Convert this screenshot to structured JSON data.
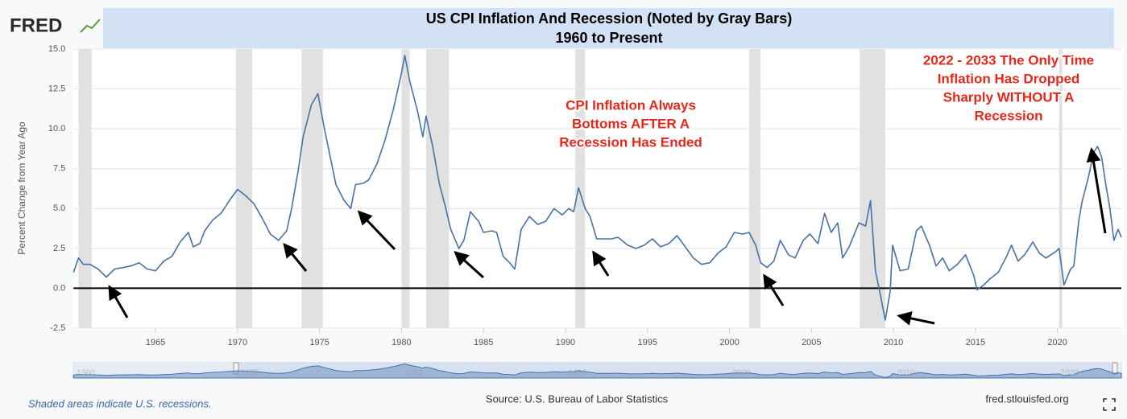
{
  "logo": "FRED",
  "chart_data": {
    "type": "line",
    "title": "US CPI Inflation And Recession (Noted by Gray Bars)",
    "subtitle": "1960 to Present",
    "y_label": "Percent Change from Year Ago",
    "color": "#4572a7",
    "x": [
      1960.0,
      1960.3,
      1960.6,
      1961.0,
      1961.5,
      1962.0,
      1962.5,
      1963.0,
      1963.5,
      1964.0,
      1964.5,
      1965.0,
      1965.5,
      1966.0,
      1966.5,
      1967.0,
      1967.3,
      1967.7,
      1968.0,
      1968.5,
      1969.0,
      1969.5,
      1970.0,
      1970.5,
      1971.0,
      1971.5,
      1972.0,
      1972.5,
      1973.0,
      1973.3,
      1973.7,
      1974.0,
      1974.5,
      1974.9,
      1975.3,
      1975.7,
      1976.0,
      1976.5,
      1976.9,
      1977.2,
      1977.7,
      1978.0,
      1978.5,
      1979.0,
      1979.5,
      1980.0,
      1980.2,
      1980.5,
      1981.0,
      1981.3,
      1981.5,
      1981.9,
      1982.3,
      1982.7,
      1983.0,
      1983.5,
      1983.8,
      1984.2,
      1984.7,
      1985.0,
      1985.5,
      1985.8,
      1986.2,
      1986.6,
      1986.9,
      1987.3,
      1987.8,
      1988.3,
      1988.8,
      1989.3,
      1989.8,
      1990.2,
      1990.5,
      1990.8,
      1991.2,
      1991.5,
      1991.9,
      1992.3,
      1992.8,
      1993.2,
      1993.8,
      1994.3,
      1994.8,
      1995.3,
      1995.8,
      1996.3,
      1996.8,
      1997.3,
      1997.8,
      1998.3,
      1998.8,
      1999.3,
      1999.8,
      2000.3,
      2000.8,
      2001.2,
      2001.6,
      2001.9,
      2002.3,
      2002.7,
      2003.1,
      2003.6,
      2004.0,
      2004.5,
      2004.9,
      2005.4,
      2005.8,
      2006.2,
      2006.6,
      2006.9,
      2007.3,
      2007.9,
      2008.3,
      2008.6,
      2008.9,
      2009.2,
      2009.5,
      2009.8,
      2009.95,
      2010.4,
      2010.9,
      2011.4,
      2011.7,
      2012.2,
      2012.6,
      2013.0,
      2013.4,
      2013.9,
      2014.4,
      2014.9,
      2015.1,
      2015.5,
      2015.9,
      2016.4,
      2016.9,
      2017.2,
      2017.6,
      2018.0,
      2018.5,
      2018.9,
      2019.3,
      2019.9,
      2020.1,
      2020.4,
      2020.8,
      2021.0,
      2021.3,
      2021.5,
      2021.9,
      2022.2,
      2022.45,
      2022.7,
      2022.95,
      2023.2,
      2023.45,
      2023.7,
      2023.9
    ],
    "values": [
      1.0,
      1.9,
      1.5,
      1.5,
      1.2,
      0.7,
      1.2,
      1.3,
      1.4,
      1.6,
      1.2,
      1.1,
      1.7,
      2.0,
      2.9,
      3.5,
      2.6,
      2.8,
      3.6,
      4.3,
      4.7,
      5.5,
      6.2,
      5.8,
      5.3,
      4.4,
      3.4,
      3.0,
      3.6,
      5.0,
      7.4,
      9.5,
      11.5,
      12.2,
      10.0,
      8.0,
      6.5,
      5.5,
      5.0,
      6.5,
      6.6,
      6.8,
      7.8,
      9.3,
      11.2,
      13.5,
      14.6,
      13.0,
      11.0,
      9.5,
      10.8,
      8.9,
      6.6,
      5.0,
      3.7,
      2.5,
      3.0,
      4.8,
      4.2,
      3.5,
      3.6,
      3.5,
      2.0,
      1.6,
      1.2,
      3.7,
      4.5,
      4.0,
      4.2,
      5.0,
      4.6,
      5.0,
      4.8,
      6.3,
      5.0,
      4.5,
      3.1,
      3.1,
      3.1,
      3.2,
      2.7,
      2.5,
      2.7,
      3.1,
      2.6,
      2.8,
      3.3,
      2.6,
      1.9,
      1.5,
      1.6,
      2.2,
      2.6,
      3.5,
      3.4,
      3.5,
      2.7,
      1.6,
      1.3,
      1.7,
      3.0,
      2.1,
      1.9,
      3.0,
      3.4,
      2.8,
      4.7,
      3.5,
      4.1,
      1.9,
      2.6,
      4.1,
      3.9,
      5.5,
      1.1,
      -0.4,
      -2.0,
      -0.2,
      2.7,
      1.1,
      1.2,
      3.6,
      3.9,
      2.7,
      1.4,
      1.9,
      1.1,
      1.5,
      2.1,
      0.8,
      -0.1,
      0.2,
      0.6,
      1.0,
      2.0,
      2.7,
      1.7,
      2.1,
      2.9,
      2.2,
      1.9,
      2.3,
      2.5,
      0.2,
      1.2,
      1.4,
      4.2,
      5.4,
      7.0,
      8.5,
      8.9,
      8.2,
      6.5,
      5.0,
      3.0,
      3.7,
      3.2
    ],
    "recessions": [
      [
        1960.3,
        1961.1
      ],
      [
        1969.9,
        1970.9
      ],
      [
        1973.9,
        1975.2
      ],
      [
        1980.0,
        1980.5
      ],
      [
        1981.5,
        1982.9
      ],
      [
        1990.6,
        1991.2
      ],
      [
        2001.2,
        2001.9
      ],
      [
        2007.95,
        2009.5
      ],
      [
        2020.1,
        2020.3
      ]
    ],
    "xlim": [
      1960,
      2023.9
    ],
    "xticks": [
      1965,
      1970,
      1975,
      1980,
      1985,
      1990,
      1995,
      2000,
      2005,
      2010,
      2015,
      2020
    ],
    "ylim": [
      -2.5,
      15
    ],
    "yticks": [
      -2.5,
      {
        "value": 0,
        "label": "0.0"
      },
      2.5,
      {
        "value": 5,
        "label": "5.0"
      },
      7.5,
      {
        "value": 10,
        "label": "10.0"
      },
      12.5,
      {
        "value": 15,
        "label": "15.0"
      }
    ],
    "grid": true,
    "navigator_xticks": [
      1960,
      1970,
      1980,
      1990,
      2000,
      2010,
      2020
    ],
    "annotations": [
      {
        "lines": [
          "CPI Inflation Always",
          "Bottoms AFTER A",
          "Recession Has Ended"
        ]
      },
      {
        "lines": [
          "2022 - 2033 The Only Time",
          "Inflation Has Dropped",
          "Sharply WITHOUT A",
          "Recession"
        ]
      }
    ],
    "note": "Shaded areas indicate U.S. recessions.",
    "source": "Source: U.S. Bureau of Labor Statistics",
    "site": "fred.stlouisfed.org"
  }
}
